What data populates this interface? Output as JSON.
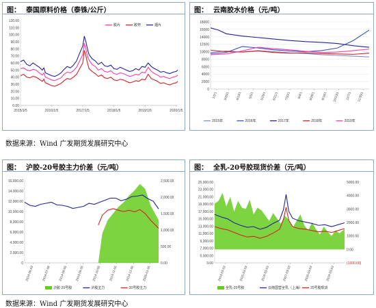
{
  "panels": [
    {
      "label": "图：",
      "title": "泰国原料价格（泰铢/公斤）"
    },
    {
      "label": "图：",
      "title": "云南胶水价格（元/吨）"
    },
    {
      "label": "图：",
      "title": "沪胶-20号胶主力价差（元/吨）"
    },
    {
      "label": "图：",
      "title": "全乳-20号胶现货价差（元/吨）"
    }
  ],
  "source_text": "数据来源：Wind  广发期货发展研究中心",
  "colors": {
    "pink": "#ff3ba0",
    "red": "#d42020",
    "navy": "#22229a",
    "purple": "#7a4fbf",
    "green": "#66cc1e",
    "border": "#8fa9c9"
  },
  "chart_data": [
    {
      "type": "line",
      "x_ticks": [
        "2015/1/5",
        "2016/1/5",
        "2017/1/5",
        "2018/1/5",
        "2019/1/5",
        "2020/1/5"
      ],
      "ylim": [
        0,
        120
      ],
      "y_ticks": [
        "0.00",
        "10.00",
        "20.00",
        "30.00",
        "40.00",
        "50.00",
        "60.00",
        "70.00",
        "80.00",
        "90.00",
        "100.00",
        "110.00",
        "120.00"
      ],
      "legend": [
        "胶片",
        "胶杯",
        "烟片"
      ],
      "series": [
        {
          "name": "胶片",
          "color": "#ff3ba0",
          "x": [
            0,
            0.1,
            0.2,
            0.3,
            0.4,
            0.5,
            0.6,
            0.7,
            0.75,
            0.8,
            0.9,
            1.0,
            1.1,
            1.2,
            1.3,
            1.4,
            1.5,
            1.6,
            1.7,
            1.8,
            1.9,
            2.0,
            2.05,
            2.1,
            2.15,
            2.2,
            2.3,
            2.4,
            2.5,
            2.6,
            2.7,
            2.8,
            2.9,
            3.0,
            3.1,
            3.2,
            3.3,
            3.4,
            3.5,
            3.6,
            3.7,
            3.8,
            3.9,
            4.0,
            4.1,
            4.2,
            4.3,
            4.4,
            4.5,
            4.6,
            4.7,
            4.8,
            4.9,
            5.0,
            5.05
          ],
          "y": [
            52,
            53,
            50,
            49,
            51,
            50,
            46,
            43,
            46,
            40,
            38,
            36,
            35,
            37,
            39,
            44,
            47,
            46,
            49,
            54,
            63,
            72,
            88,
            80,
            70,
            64,
            58,
            55,
            50,
            52,
            48,
            47,
            49,
            45,
            44,
            46,
            45,
            43,
            41,
            42,
            44,
            43,
            47,
            46,
            54,
            48,
            45,
            43,
            40,
            41,
            39,
            38,
            40,
            41,
            43
          ]
        },
        {
          "name": "胶杯",
          "color": "#d42020",
          "x": [
            0,
            0.1,
            0.2,
            0.3,
            0.4,
            0.5,
            0.6,
            0.7,
            0.75,
            0.8,
            0.9,
            1.0,
            1.1,
            1.2,
            1.3,
            1.4,
            1.5,
            1.6,
            1.7,
            1.8,
            1.9,
            2.0,
            2.05,
            2.1,
            2.15,
            2.2,
            2.3,
            2.4,
            2.5,
            2.6,
            2.7,
            2.8,
            2.9,
            3.0,
            3.1,
            3.2,
            3.3,
            3.4,
            3.5,
            3.6,
            3.7,
            3.8,
            3.9,
            4.0,
            4.1,
            4.2,
            4.3,
            4.4,
            4.5,
            4.6,
            4.7,
            4.8,
            4.9,
            5.0,
            5.05
          ],
          "y": [
            42,
            44,
            40,
            39,
            41,
            40,
            37,
            34,
            37,
            32,
            30,
            28,
            27,
            29,
            31,
            35,
            38,
            37,
            40,
            44,
            52,
            60,
            78,
            70,
            60,
            52,
            48,
            45,
            41,
            43,
            39,
            38,
            40,
            36,
            35,
            37,
            36,
            34,
            32,
            33,
            35,
            34,
            37,
            36,
            44,
            38,
            36,
            34,
            31,
            32,
            30,
            29,
            31,
            32,
            34
          ]
        },
        {
          "name": "烟片",
          "color": "#22229a",
          "x": [
            0,
            0.1,
            0.2,
            0.3,
            0.4,
            0.5,
            0.6,
            0.7,
            0.75,
            0.8,
            0.9,
            1.0,
            1.1,
            1.2,
            1.3,
            1.4,
            1.5,
            1.6,
            1.7,
            1.8,
            1.9,
            2.0,
            2.05,
            2.1,
            2.15,
            2.2,
            2.3,
            2.4,
            2.5,
            2.6,
            2.7,
            2.8,
            2.9,
            3.0,
            3.1,
            3.2,
            3.3,
            3.4,
            3.5,
            3.6,
            3.7,
            3.8,
            3.9,
            4.0,
            4.1,
            4.2,
            4.3,
            4.4,
            4.5,
            4.6,
            4.7,
            4.8,
            4.9,
            5.0,
            5.05
          ],
          "y": [
            62,
            64,
            58,
            56,
            60,
            57,
            54,
            50,
            53,
            46,
            44,
            42,
            41,
            43,
            46,
            51,
            55,
            53,
            57,
            63,
            74,
            84,
            98,
            90,
            80,
            72,
            66,
            63,
            58,
            61,
            56,
            55,
            57,
            52,
            51,
            54,
            52,
            50,
            48,
            49,
            52,
            50,
            55,
            54,
            60,
            55,
            52,
            50,
            47,
            48,
            46,
            45,
            47,
            48,
            50
          ]
        }
      ]
    },
    {
      "type": "line",
      "x_ticks": [
        "1/2/1",
        "3/20/1",
        "4/13/1",
        "5/5/1",
        "5/29/1",
        "6/21/1",
        "7/10/1",
        "8/4/1",
        "8/26/1",
        "9/18/1",
        "10/13/1",
        "11/7/1",
        "11/30/1"
      ],
      "ylim": [
        0,
        18000
      ],
      "y_ticks": [
        "0",
        "2000",
        "4000",
        "6000",
        "8000",
        "10000",
        "12000",
        "14000",
        "16000",
        "18000"
      ],
      "legend": [
        "2015年",
        "2016年",
        "2017年",
        "2018年",
        "2019年"
      ],
      "series": [
        {
          "name": "2015年",
          "color": "#7a8fd6",
          "x": [
            0,
            10,
            20,
            30,
            40,
            50,
            60,
            70,
            80,
            90,
            100
          ],
          "y": [
            9800,
            10200,
            9900,
            10300,
            10000,
            9700,
            9500,
            9200,
            9000,
            8800,
            8600
          ]
        },
        {
          "name": "2016年",
          "color": "#3b4fc8",
          "x": [
            0,
            10,
            20,
            30,
            40,
            50,
            60,
            70,
            80,
            90,
            100
          ],
          "y": [
            9500,
            9800,
            11400,
            11000,
            10500,
            10200,
            10000,
            10300,
            11000,
            13000,
            15800
          ]
        },
        {
          "name": "2017年",
          "color": "#22229a",
          "x": [
            0,
            5,
            10,
            20,
            30,
            40,
            50,
            60,
            70,
            80,
            90,
            100
          ],
          "y": [
            16400,
            15800,
            14800,
            14200,
            13800,
            13400,
            13000,
            12700,
            12500,
            12200,
            11600,
            11200
          ]
        },
        {
          "name": "2018年",
          "color": "#d42020",
          "x": [
            0,
            10,
            20,
            30,
            40,
            50,
            60,
            70,
            80,
            90,
            100
          ],
          "y": [
            10400,
            10000,
            9900,
            10200,
            9800,
            9600,
            9700,
            9500,
            9400,
            9300,
            9600
          ]
        },
        {
          "name": "2019年",
          "color": "#ff3ba0",
          "x": [
            0,
            10,
            20,
            30,
            40,
            50,
            60,
            70,
            80,
            90,
            100
          ],
          "y": [
            9200,
            9400,
            10200,
            11200,
            10800,
            10500,
            10100,
            9800,
            9900,
            10300,
            10700
          ]
        }
      ]
    },
    {
      "type": "line",
      "x_ticks": [
        "2014-06-03",
        "2014-07-08",
        "2014-08-05",
        "2014-09-05",
        "2014-10-05",
        "2014-11-05",
        "2014-12-05",
        "2020-01-05"
      ],
      "ylim": [
        0,
        16000
      ],
      "y_ticks": [
        "0",
        "2,000.00",
        "4,000.00",
        "6,000.00",
        "8,000.00",
        "10,000.00",
        "12,000.00",
        "14,000.00",
        "16,000.00"
      ],
      "y2lim": [
        0,
        2500
      ],
      "y2_ticks": [
        "0.00",
        "500.00",
        "1,000.00",
        "1,500.00",
        "2,000.00",
        "2,500.00"
      ],
      "legend": [
        "沪胶-20号胶",
        "沪胶主力",
        "20号胶主力"
      ],
      "series": [
        {
          "name": "沪胶-20号胶",
          "color": "#66cc1e",
          "type": "area",
          "axis": "right",
          "x": [
            0,
            0.55,
            0.58,
            0.62,
            0.66,
            0.7,
            0.74,
            0.78,
            0.82,
            0.86,
            0.9,
            0.94,
            1.0
          ],
          "y": [
            0,
            0,
            900,
            1300,
            1500,
            1700,
            1850,
            2050,
            2200,
            2400,
            2250,
            1750,
            1300
          ]
        },
        {
          "name": "沪胶主力",
          "color": "#22229a",
          "x": [
            0,
            0.04,
            0.08,
            0.12,
            0.16,
            0.2,
            0.24,
            0.28,
            0.32,
            0.36,
            0.4,
            0.44,
            0.48,
            0.52,
            0.56,
            0.6,
            0.64,
            0.68,
            0.72,
            0.76,
            0.8,
            0.84,
            0.88,
            0.92,
            0.96,
            1.0
          ],
          "y": [
            11800,
            11200,
            11000,
            11400,
            11600,
            11800,
            11300,
            11200,
            11000,
            10600,
            10800,
            11000,
            11600,
            11400,
            11800,
            12200,
            12600,
            12600,
            12100,
            12400,
            12900,
            13000,
            13200,
            12500,
            12000,
            10500
          ]
        },
        {
          "name": "20号胶主力",
          "color": "#d42020",
          "axis": "right",
          "x": [
            0.55,
            0.58,
            0.62,
            0.66,
            0.7,
            0.74,
            0.78,
            0.82,
            0.86,
            0.9,
            0.94,
            1.0
          ],
          "y": [
            1150,
            1450,
            1600,
            1650,
            1600,
            1560,
            1600,
            1550,
            1620,
            1500,
            1300,
            1050
          ]
        }
      ]
    },
    {
      "type": "line",
      "x_ticks": [
        "2014-03-03",
        "2015-03-03",
        "2016-03-03",
        "2017-03-03",
        "2018-03-03",
        "2019-03-03"
      ],
      "ylim": [
        0,
        25000
      ],
      "y_ticks": [
        "0.00",
        "5,000.00",
        "7,000.00",
        "9,000.00",
        "11,000.00",
        "13,000.00",
        "15,000.00",
        "17,000.00",
        "19,000.00",
        "21,000.00",
        "23,000.00",
        "25,000.00"
      ],
      "y2lim": [
        -1000,
        5000
      ],
      "y2_ticks": [
        "(1000.00)",
        "0.00",
        "1000.00",
        "2000.00",
        "3000.00",
        "4000.00",
        "5000.00"
      ],
      "legend": [
        "全乳-20号胶",
        "云南国营全乳（上海）",
        "20号胶现货"
      ],
      "series": [
        {
          "name": "全乳-20号胶",
          "color": "#66cc1e",
          "type": "area",
          "axis": "right",
          "x": [
            0,
            0.03,
            0.06,
            0.09,
            0.12,
            0.15,
            0.18,
            0.21,
            0.24,
            0.27,
            0.3,
            0.33,
            0.36,
            0.39,
            0.42,
            0.45,
            0.48,
            0.51,
            0.54,
            0.57,
            0.6,
            0.63,
            0.66,
            0.69,
            0.72,
            0.75,
            0.78,
            0.81,
            0.84,
            0.87,
            0.9,
            0.93,
            0.96,
            1.0
          ],
          "y": [
            3400,
            3600,
            4200,
            3200,
            3900,
            2800,
            3600,
            3100,
            3000,
            3700,
            2600,
            3100,
            2900,
            2500,
            2100,
            2700,
            2300,
            1900,
            2500,
            2200,
            1600,
            2100,
            2600,
            1800,
            1400,
            2000,
            1500,
            1100,
            1700,
            1300,
            1000,
            1400,
            1200,
            1500
          ]
        },
        {
          "name": "云南国营全乳（上海）",
          "color": "#22229a",
          "x": [
            0,
            0.05,
            0.1,
            0.15,
            0.2,
            0.25,
            0.3,
            0.35,
            0.4,
            0.45,
            0.5,
            0.53,
            0.55,
            0.57,
            0.6,
            0.65,
            0.7,
            0.75,
            0.8,
            0.85,
            0.9,
            0.95,
            1.0
          ],
          "y": [
            15000,
            14200,
            13600,
            12400,
            11600,
            11000,
            11200,
            10400,
            11000,
            12200,
            13200,
            16500,
            21200,
            16000,
            13800,
            13000,
            12600,
            12200,
            11600,
            11800,
            11200,
            11800,
            12400
          ]
        },
        {
          "name": "20号胶现货",
          "color": "#d42020",
          "x": [
            0,
            0.05,
            0.1,
            0.15,
            0.2,
            0.25,
            0.3,
            0.35,
            0.4,
            0.45,
            0.5,
            0.53,
            0.55,
            0.57,
            0.6,
            0.65,
            0.7,
            0.75,
            0.8,
            0.85,
            0.9,
            0.95,
            1.0
          ],
          "y": [
            11200,
            10600,
            10200,
            9400,
            8600,
            8000,
            8200,
            7600,
            8200,
            9200,
            10400,
            13500,
            17200,
            13200,
            11200,
            10600,
            10400,
            10000,
            9600,
            9800,
            9400,
            10000,
            10600
          ]
        }
      ]
    }
  ]
}
